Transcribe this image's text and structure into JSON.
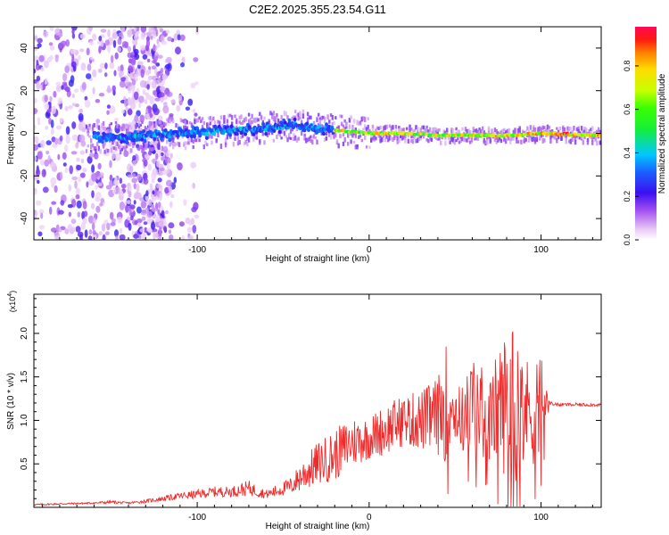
{
  "title": "C2E2.2025.355.23.54.G11",
  "colorbar": {
    "label": "Normalized spectral amplitude",
    "ticks": [
      "0.0",
      "0.2",
      "0.4",
      "0.6",
      "0.8"
    ],
    "tick_values": [
      0.0,
      0.2,
      0.4,
      0.6,
      0.8
    ],
    "range": [
      0,
      0.98
    ]
  },
  "chart_data": [
    {
      "type": "heatmap",
      "name": "spectrogram",
      "xlabel": "Height of straight line (km)",
      "ylabel": "Frequency (Hz)",
      "xlim": [
        -195,
        135
      ],
      "ylim": [
        -50,
        50
      ],
      "x_ticks": [
        "-100",
        "0",
        "100"
      ],
      "x_tick_values": [
        -100,
        0,
        100
      ],
      "y_ticks": [
        "40",
        "20",
        "0",
        "-20",
        "-40"
      ],
      "y_tick_values": [
        40,
        20,
        0,
        -20,
        -40
      ],
      "ridge": {
        "x": [
          -150,
          -130,
          -110,
          -90,
          -70,
          -55,
          -45,
          -35,
          -25,
          -15,
          0,
          20,
          40,
          60,
          80,
          100,
          135
        ],
        "freq": [
          -2,
          -1,
          0,
          1,
          2,
          3,
          4,
          3,
          2,
          1,
          0,
          0,
          -1,
          -1,
          -1,
          0,
          -1
        ]
      }
    },
    {
      "type": "line",
      "name": "snr",
      "xlabel": "Height of straight line (km)",
      "ylabel": "SNR (10 * v/v)",
      "multiplier": "(x10",
      "exponent": "4",
      "xlim": [
        -195,
        135
      ],
      "ylim": [
        0,
        2.45
      ],
      "x_ticks": [
        "-100",
        "0",
        "100"
      ],
      "x_tick_values": [
        -100,
        0,
        100
      ],
      "y_ticks": [
        "0.5",
        "1.0",
        "1.5",
        "2.0"
      ],
      "y_tick_values": [
        0.5,
        1.0,
        1.5,
        2.0
      ],
      "series": [
        {
          "name": "SNR",
          "color": "#ee2a2a",
          "x": [
            -195,
            -180,
            -160,
            -150,
            -140,
            -130,
            -120,
            -110,
            -100,
            -90,
            -80,
            -70,
            -60,
            -55,
            -45,
            -40,
            -30,
            -20,
            -10,
            0,
            10,
            20,
            30,
            40,
            45,
            50,
            55,
            60,
            65,
            70,
            75,
            80,
            85,
            90,
            95,
            100,
            103,
            105,
            110,
            120,
            135
          ],
          "y": [
            0.03,
            0.04,
            0.05,
            0.06,
            0.05,
            0.07,
            0.1,
            0.13,
            0.15,
            0.18,
            0.18,
            0.22,
            0.15,
            0.18,
            0.25,
            0.35,
            0.5,
            0.6,
            0.75,
            0.8,
            0.9,
            1.0,
            1.0,
            1.05,
            1.2,
            1.1,
            1.0,
            1.2,
            1.1,
            1.0,
            1.15,
            1.2,
            1.25,
            1.1,
            1.15,
            1.2,
            1.15,
            1.2,
            1.18,
            1.18,
            1.18
          ],
          "noise": [
            0.01,
            0.01,
            0.01,
            0.02,
            0.01,
            0.02,
            0.03,
            0.04,
            0.05,
            0.06,
            0.06,
            0.09,
            0.05,
            0.07,
            0.1,
            0.18,
            0.25,
            0.3,
            0.3,
            0.25,
            0.3,
            0.3,
            0.35,
            0.45,
            0.7,
            0.35,
            0.4,
            0.6,
            0.55,
            0.45,
            0.7,
            0.85,
            1.0,
            0.55,
            0.7,
            0.6,
            0.25,
            0.02,
            0.02,
            0.02,
            0.02
          ]
        }
      ]
    }
  ]
}
